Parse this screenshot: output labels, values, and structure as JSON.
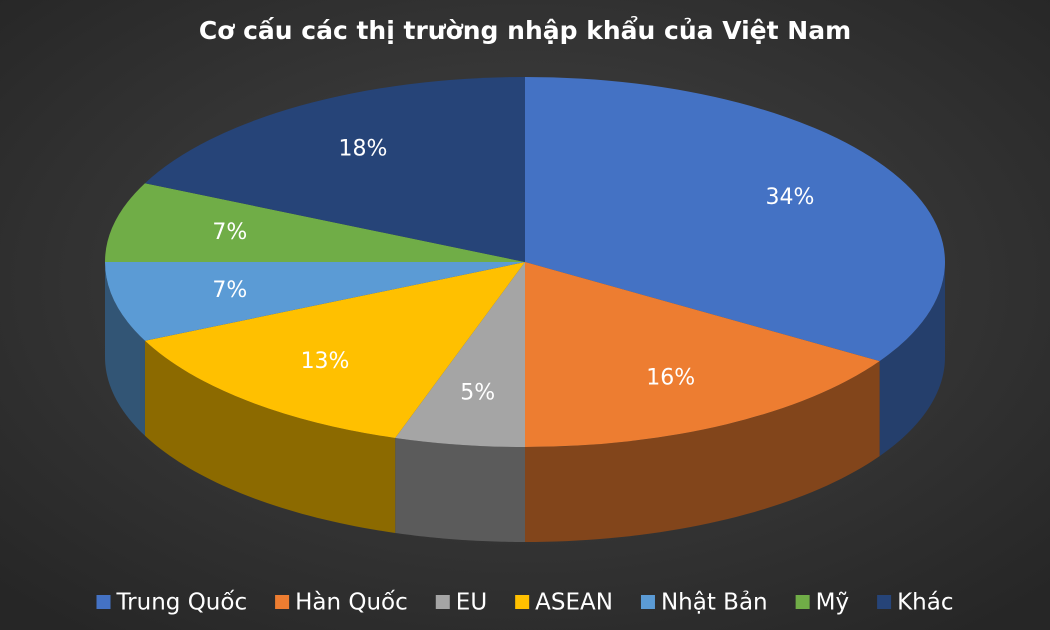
{
  "chart_data": {
    "type": "pie",
    "title": "Cơ cấu các thị trường nhập khẩu của Việt Nam",
    "categories": [
      "Trung Quốc",
      "Hàn Quốc",
      "EU",
      "ASEAN",
      "Nhật Bản",
      "Mỹ",
      "Khác"
    ],
    "values": [
      34,
      16,
      5,
      13,
      7,
      7,
      18
    ],
    "value_labels": [
      "34%",
      "16%",
      "5%",
      "13%",
      "7%",
      "7%",
      "18%"
    ],
    "colors": [
      "#4472c4",
      "#ed7d31",
      "#a5a5a5",
      "#ffc000",
      "#5b9bd5",
      "#70ad47",
      "#264478"
    ],
    "legend": "bottom"
  }
}
